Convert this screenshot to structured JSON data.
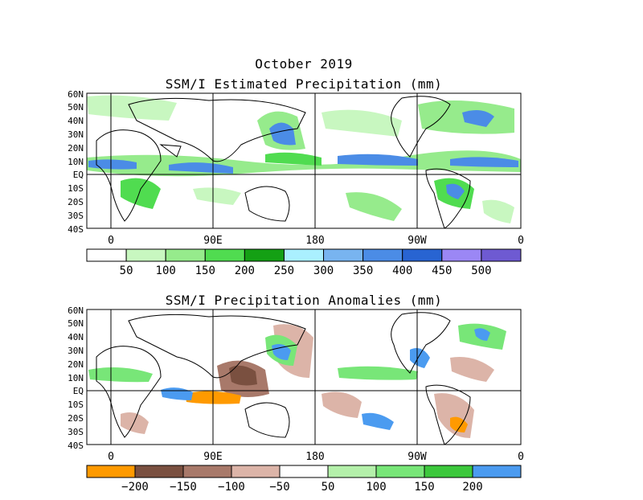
{
  "header": {
    "month_title": "October 2019"
  },
  "panels": [
    {
      "title": "SSM/I Estimated Precipitation (mm)",
      "lat_labels": [
        "60N",
        "50N",
        "40N",
        "30N",
        "20N",
        "10N",
        "EQ",
        "10S",
        "20S",
        "30S",
        "40S"
      ],
      "lon_labels": [
        "0",
        "90E",
        "180",
        "90W",
        "0"
      ],
      "colorbar": {
        "colors": [
          "#ffffff",
          "#c8f7c0",
          "#96eb8c",
          "#50dc50",
          "#14a014",
          "#aaf0ff",
          "#78b4f0",
          "#4b8ce6",
          "#2864d2",
          "#9b87f5",
          "#6e5ad2"
        ],
        "labels": [
          "50",
          "100",
          "150",
          "200",
          "250",
          "300",
          "350",
          "400",
          "450",
          "500"
        ]
      }
    },
    {
      "title": "SSM/I Precipitation Anomalies (mm)",
      "lat_labels": [
        "60N",
        "50N",
        "40N",
        "30N",
        "20N",
        "10N",
        "EQ",
        "10S",
        "20S",
        "30S",
        "40S"
      ],
      "lon_labels": [
        "0",
        "90E",
        "180",
        "90W",
        "0"
      ],
      "colorbar": {
        "colors": [
          "#ff9a00",
          "#7a5040",
          "#a8796a",
          "#dcb4a8",
          "#ffffff",
          "#b4f0aa",
          "#78e678",
          "#3cc83c",
          "#4b9bf0"
        ],
        "labels": [
          "−200",
          "−150",
          "−100",
          "−50",
          "50",
          "100",
          "150",
          "200"
        ]
      }
    }
  ]
}
